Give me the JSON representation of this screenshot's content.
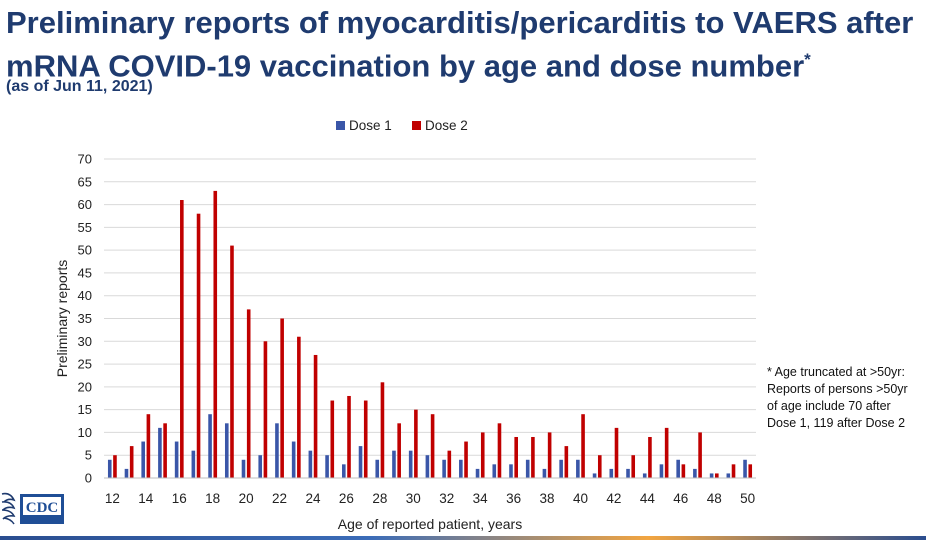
{
  "slide": {
    "title_line1": "Preliminary reports of myocarditis/pericarditis to VAERS after",
    "title_line2": "mRNA COVID-19 vaccination by age and dose number",
    "title_mark": "*",
    "as_of": "(as of Jun 11, 2021)",
    "footnote": "* Age truncated at >50yr:\nReports of persons >50yr\nof age include 70 after\nDose 1, 119 after Dose 2",
    "logo_text": "CDC"
  },
  "colors": {
    "dose1": "#3a56a8",
    "dose2": "#c00000",
    "title": "#1f3b6f"
  },
  "chart_data": {
    "type": "bar",
    "title": "",
    "xlabel": "Age of reported patient, years",
    "ylabel": "Preliminary reports",
    "ylim": [
      0,
      70
    ],
    "yticks": [
      0,
      5,
      10,
      15,
      20,
      25,
      30,
      35,
      40,
      45,
      50,
      55,
      60,
      65,
      70
    ],
    "grid": true,
    "legend": "top-center",
    "categories": [
      12,
      13,
      14,
      15,
      16,
      17,
      18,
      19,
      20,
      21,
      22,
      23,
      24,
      25,
      26,
      27,
      28,
      29,
      30,
      31,
      32,
      33,
      34,
      35,
      36,
      37,
      38,
      39,
      40,
      41,
      42,
      43,
      44,
      45,
      46,
      47,
      48,
      49,
      50
    ],
    "tick_labels": [
      "12",
      "",
      "14",
      "",
      "16",
      "",
      "18",
      "",
      "20",
      "",
      "22",
      "",
      "24",
      "",
      "26",
      "",
      "28",
      "",
      "30",
      "",
      "32",
      "",
      "34",
      "",
      "36",
      "",
      "38",
      "",
      "40",
      "",
      "42",
      "",
      "44",
      "",
      "46",
      "",
      "48",
      "",
      "50"
    ],
    "series": [
      {
        "name": "Dose 1",
        "values": [
          4,
          2,
          8,
          11,
          8,
          6,
          14,
          12,
          4,
          5,
          12,
          8,
          6,
          5,
          3,
          7,
          4,
          6,
          6,
          5,
          4,
          4,
          2,
          3,
          3,
          4,
          2,
          4,
          4,
          1,
          2,
          2,
          1,
          3,
          4,
          2,
          1,
          1,
          4
        ]
      },
      {
        "name": "Dose 2",
        "values": [
          5,
          7,
          14,
          12,
          61,
          58,
          63,
          51,
          37,
          30,
          35,
          31,
          27,
          17,
          18,
          17,
          21,
          12,
          15,
          14,
          6,
          8,
          10,
          12,
          9,
          9,
          10,
          7,
          14,
          5,
          11,
          5,
          9,
          11,
          3,
          10,
          1,
          3,
          3
        ]
      }
    ]
  }
}
